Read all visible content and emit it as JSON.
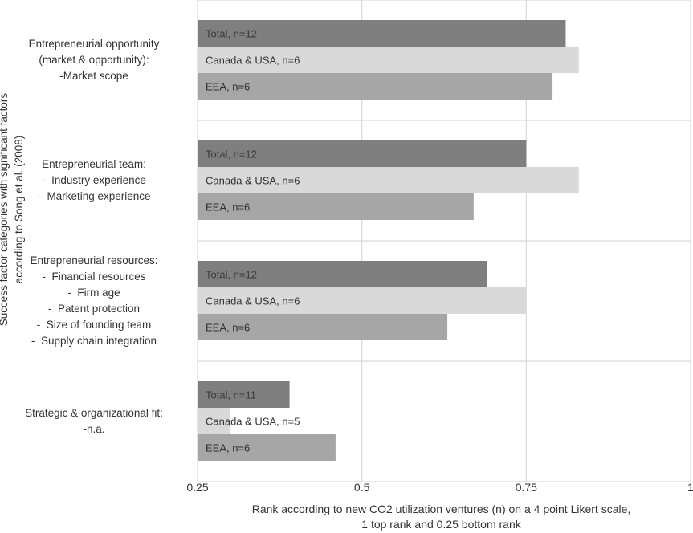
{
  "chart_data": {
    "type": "bar",
    "orientation": "horizontal",
    "xlabel_lines": [
      "Rank according to new CO2 utilization ventures (n) on a 4 point Likert scale,",
      "1 top rank and 0.25 bottom rank"
    ],
    "ylabel_lines": [
      "Success factor categories with significant factors",
      "according to Song et al. (2008)"
    ],
    "xlim": [
      0.25,
      1
    ],
    "xticks": [
      {
        "value": 0.25,
        "label": "0.25"
      },
      {
        "value": 0.5,
        "label": "0.5"
      },
      {
        "value": 0.75,
        "label": "0.75"
      },
      {
        "value": 1,
        "label": "1"
      }
    ],
    "grid": true,
    "series_colors": [
      "#7f7f7f",
      "#d9d9d9",
      "#a6a6a6"
    ],
    "categories": [
      {
        "label": "Entrepreneurial opportunity\n(market & opportunity):\n-Market scope",
        "bars": [
          {
            "label": "Total, n=12",
            "value": 0.81
          },
          {
            "label": "Canada & USA, n=6",
            "value": 0.83
          },
          {
            "label": "EEA, n=6",
            "value": 0.79
          }
        ]
      },
      {
        "label": "Entrepreneurial team:\n-  Industry experience\n-  Marketing experience",
        "bars": [
          {
            "label": "Total, n=12",
            "value": 0.75
          },
          {
            "label": "Canada & USA, n=6",
            "value": 0.83
          },
          {
            "label": "EEA, n=6",
            "value": 0.67
          }
        ]
      },
      {
        "label": "Entrepreneurial resources:\n-  Financial resources\n-  Firm age\n-  Patent protection\n-  Size of founding team\n-  Supply chain integration",
        "bars": [
          {
            "label": "Total, n=12",
            "value": 0.69
          },
          {
            "label": "Canada & USA, n=6",
            "value": 0.75
          },
          {
            "label": "EEA, n=6",
            "value": 0.63
          }
        ]
      },
      {
        "label": "Strategic & organizational fit:\n-n.a.",
        "bars": [
          {
            "label": "Total, n=11",
            "value": 0.39
          },
          {
            "label": "Canada & USA, n=5",
            "value": 0.3
          },
          {
            "label": "EEA, n=6",
            "value": 0.46
          }
        ]
      }
    ]
  }
}
